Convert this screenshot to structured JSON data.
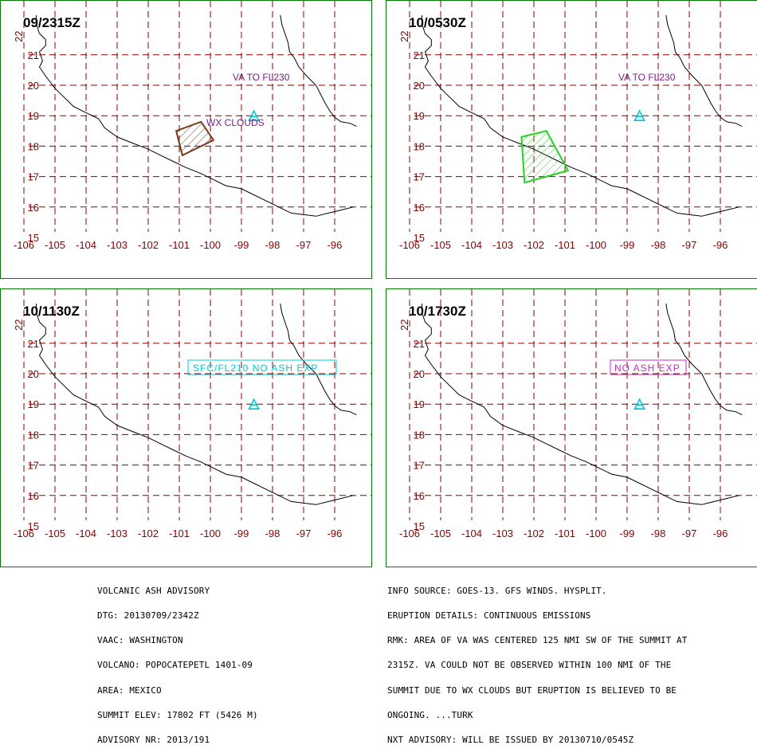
{
  "colors": {
    "grid": "#8b0000",
    "panel_border": "#007a00",
    "volcano": "#00c8d8",
    "annotation": "#7a1f8a",
    "plume_obs": "#7a3b1a",
    "plume_fcst": "#22d522",
    "sfc_box": "#00c8d8",
    "noexp_box": "#c030c0"
  },
  "icons": {
    "volcano": "volcano-icon"
  },
  "axes": {
    "lon_ticks": [
      "-106",
      "-105",
      "-104",
      "-103",
      "-102",
      "-101",
      "-100",
      "-99",
      "-98",
      "-97",
      "-96"
    ],
    "lat_ticks": [
      "15",
      "16",
      "17",
      "18",
      "19",
      "20",
      "21"
    ],
    "lat_stray": "22"
  },
  "panels": [
    {
      "time": "09/2315Z",
      "annotations": [
        "VA TO FL230",
        "WX CLOUDS"
      ],
      "plume": {
        "color": "plume_obs",
        "points": [
          [
            -101.1,
            18.5
          ],
          [
            -100.3,
            18.8
          ],
          [
            -99.9,
            18.2
          ],
          [
            -100.9,
            17.7
          ]
        ]
      }
    },
    {
      "time": "10/0530Z",
      "annotations": [
        "VA TO FL230"
      ],
      "plume": {
        "color": "plume_fcst",
        "points": [
          [
            -102.4,
            18.3
          ],
          [
            -101.6,
            18.5
          ],
          [
            -100.9,
            17.2
          ],
          [
            -102.3,
            16.8
          ]
        ]
      }
    },
    {
      "time": "10/1130Z",
      "annotations": [
        "SFC/FL210 NO ASH EXP"
      ],
      "plume": null
    },
    {
      "time": "10/1730Z",
      "annotations": [
        "NO ASH EXP"
      ],
      "plume": null
    }
  ],
  "advisory_left": [
    "VOLCANIC ASH ADVISORY",
    "DTG: 20130709/2342Z",
    "VAAC: WASHINGTON",
    "VOLCANO: POPOCATEPETL 1401-09",
    "AREA: MEXICO",
    "SUMMIT ELEV: 17802 FT (5426 M)",
    "ADVISORY NR: 2013/191"
  ],
  "advisory_right": [
    "INFO SOURCE: GOES-13. GFS WINDS. HYSPLIT.",
    "ERUPTION DETAILS: CONTINUOUS EMISSIONS",
    "RMK: AREA OF VA WAS CENTERED 125 NMI SW OF THE SUMMIT AT",
    "2315Z. VA COULD NOT BE OBSERVED WITHIN 100 NMI OF THE",
    "SUMMIT DUE TO WX CLOUDS BUT ERUPTION IS BELIEVED TO BE",
    "ONGOING. ...TURK",
    "NXT ADVISORY: WILL BE ISSUED BY 20130710/0545Z"
  ]
}
